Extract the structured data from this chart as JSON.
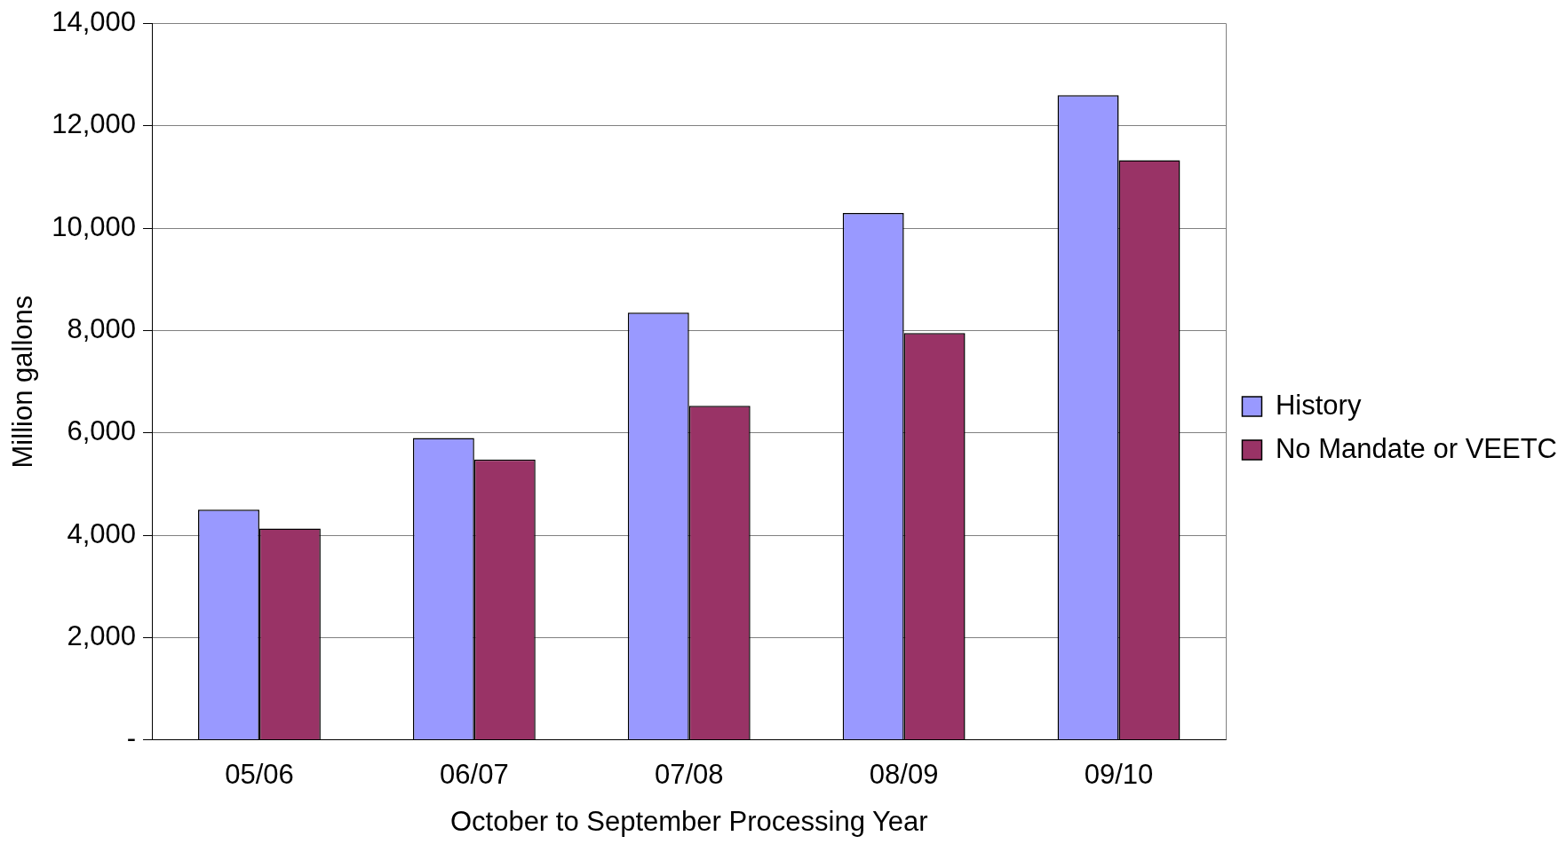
{
  "chart_data": {
    "type": "bar",
    "xlabel": "October to September Processing Year",
    "ylabel": "Million gallons",
    "categories": [
      "05/06",
      "06/07",
      "07/08",
      "08/09",
      "09/10"
    ],
    "series": [
      {
        "name": "History",
        "color": "#9999ff",
        "values": [
          4500,
          5900,
          8350,
          10300,
          12600
        ]
      },
      {
        "name": "No Mandate or VEETC",
        "color": "#993366",
        "values": [
          4130,
          5480,
          6530,
          7950,
          11330
        ]
      }
    ],
    "ylim": [
      0,
      14000
    ],
    "yticks": [
      {
        "value": 0,
        "label": "-"
      },
      {
        "value": 2000,
        "label": "2,000"
      },
      {
        "value": 4000,
        "label": "4,000"
      },
      {
        "value": 6000,
        "label": "6,000"
      },
      {
        "value": 8000,
        "label": "8,000"
      },
      {
        "value": 10000,
        "label": "10,000"
      },
      {
        "value": 12000,
        "label": "12,000"
      },
      {
        "value": 14000,
        "label": "14,000"
      }
    ],
    "grid": "y",
    "legend": "right"
  }
}
